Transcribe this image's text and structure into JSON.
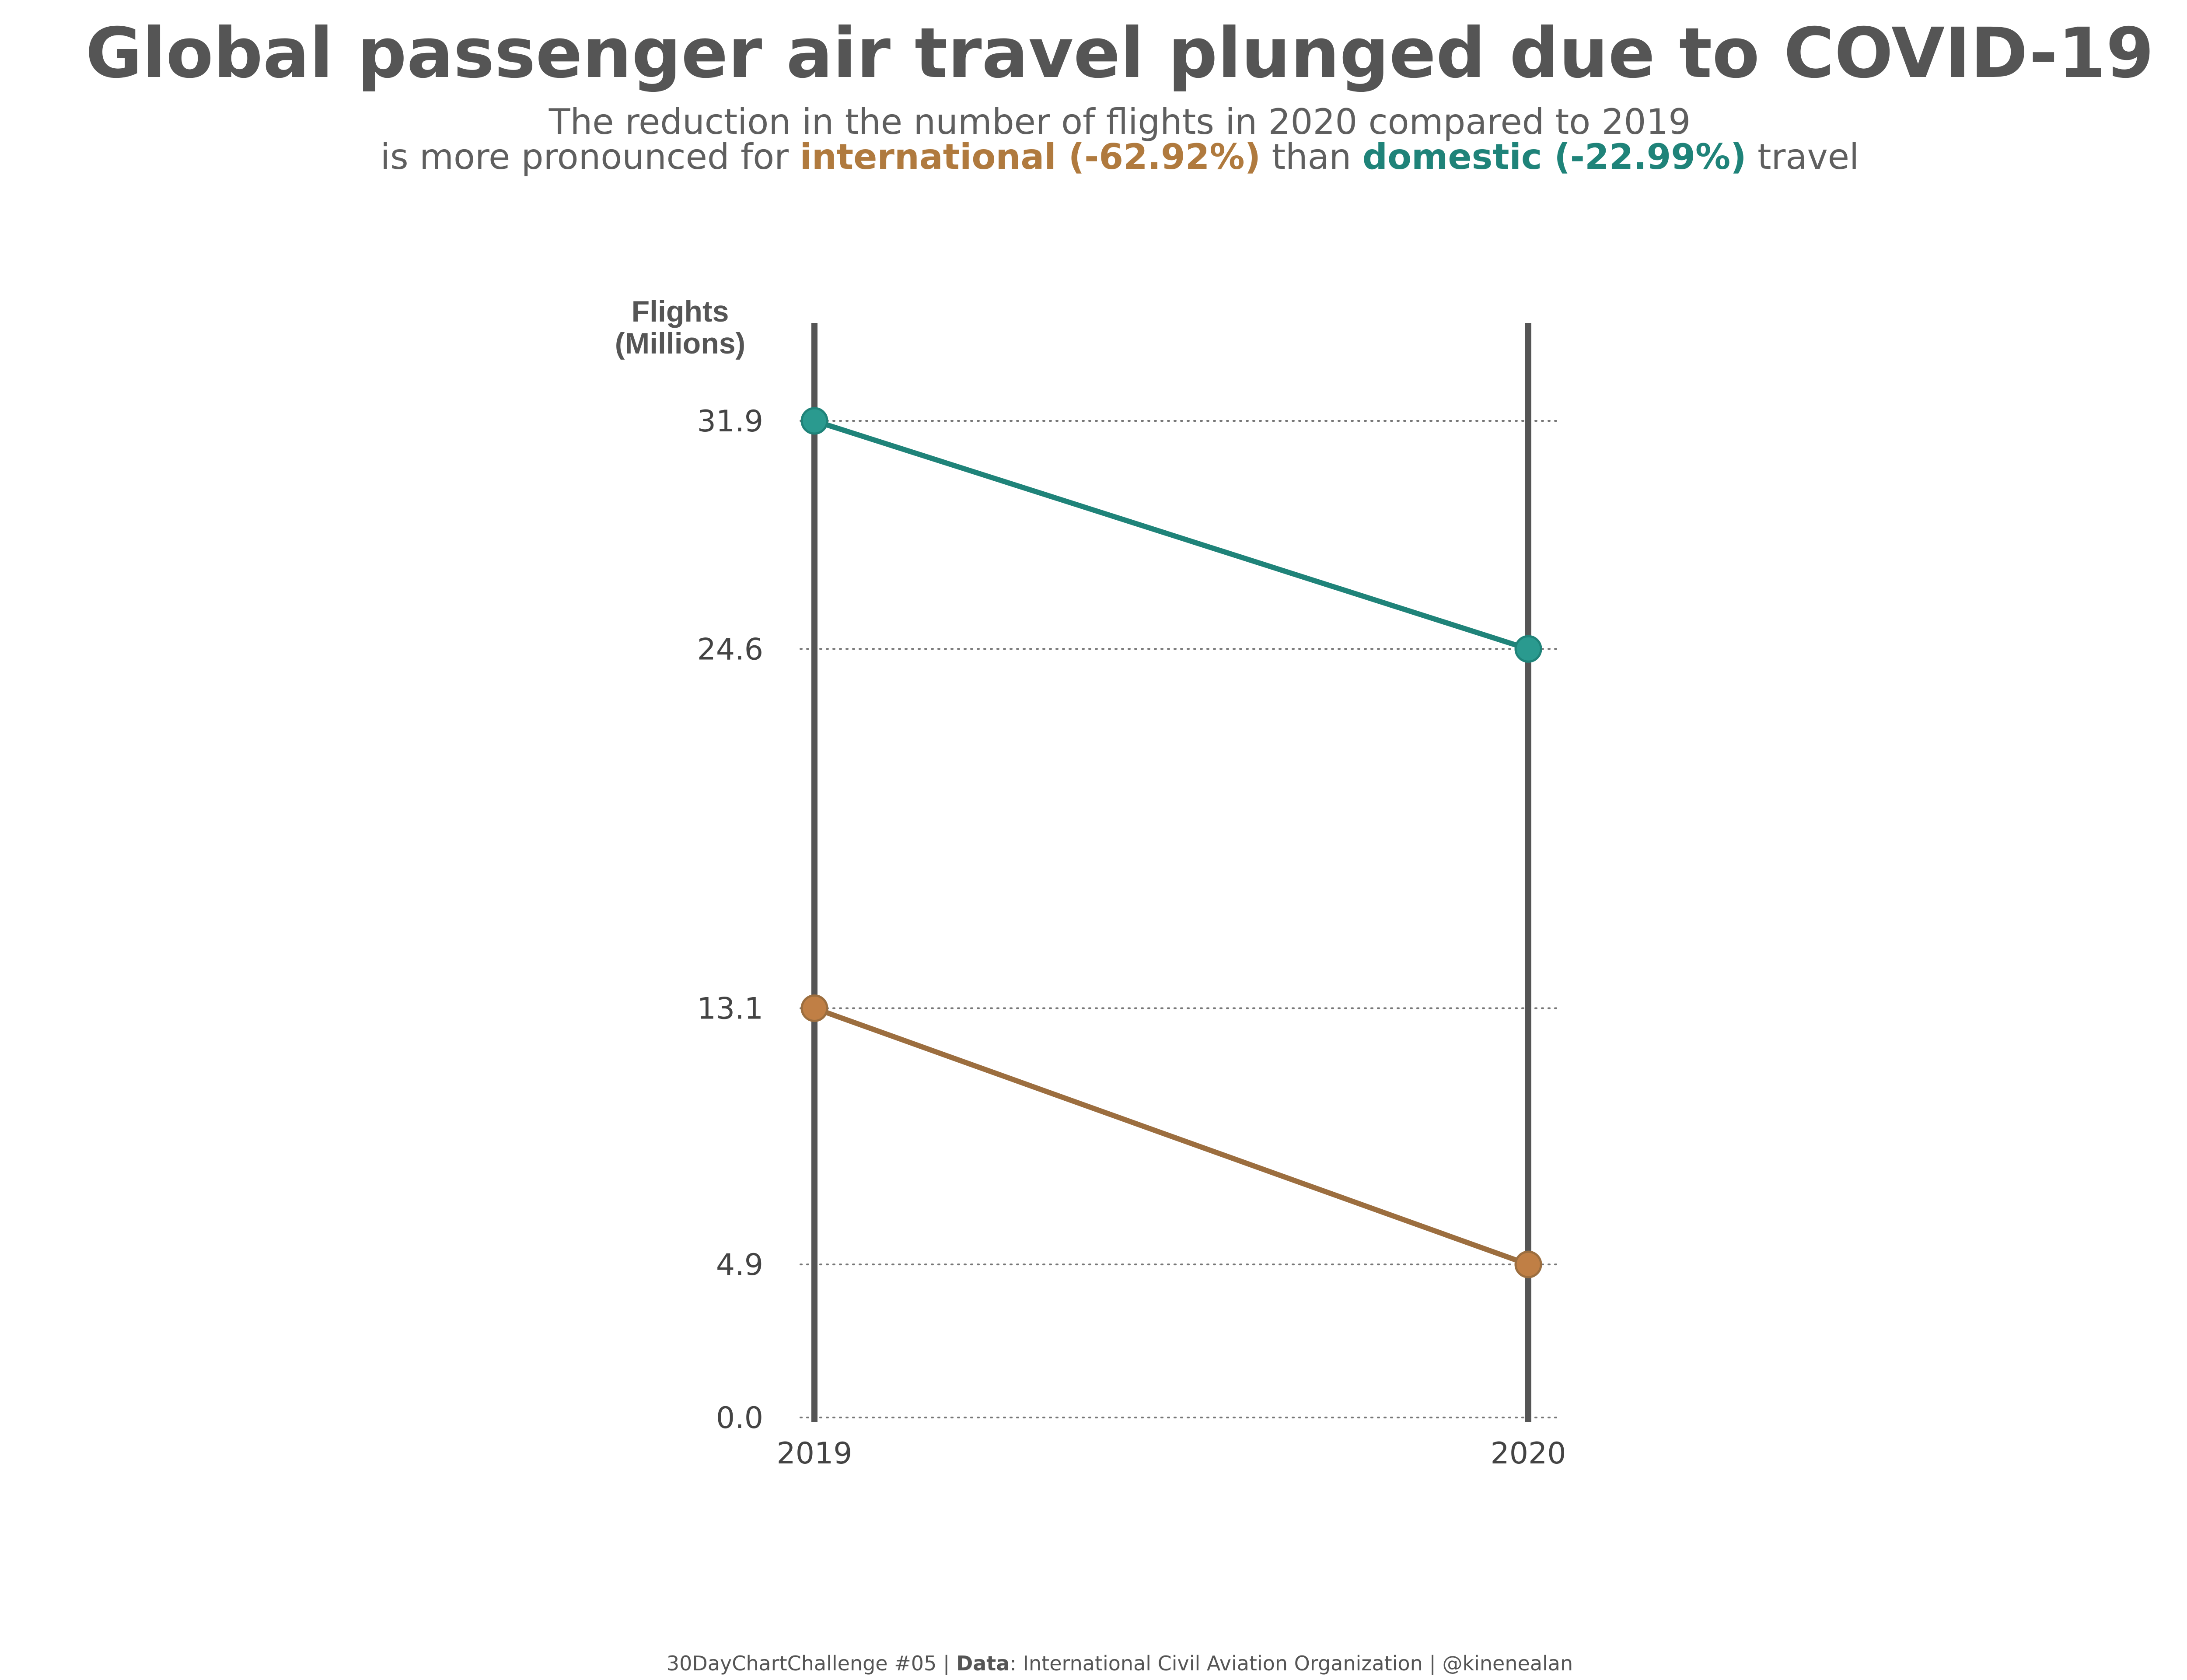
{
  "chart_data": {
    "type": "line",
    "title": "Global passenger air travel plunged due to COVID-19",
    "subtitle_line1": "The reduction in the number of flights in 2020 compared to 2019",
    "subtitle_line2": {
      "part1": "is more pronounced for ",
      "intl": "international (-62.92%)",
      "part2": " than ",
      "dom": "domestic (-22.99%)",
      "part3": " travel"
    },
    "ylabel_line1": "Flights",
    "ylabel_line2": "(Millions)",
    "x": [
      "2019",
      "2020"
    ],
    "ylim": [
      0,
      31.9
    ],
    "yticks": [
      "31.9",
      "24.6",
      "13.1",
      "4.9",
      "0.0"
    ],
    "ytick_values": [
      31.9,
      24.6,
      13.1,
      4.9,
      0.0
    ],
    "grid": "horizontal dotted",
    "series": [
      {
        "key": "domestic",
        "values": [
          31.9,
          24.6
        ],
        "color": "#1f8379",
        "point_color": "#2a9a8f"
      },
      {
        "key": "international",
        "values": [
          13.1,
          4.9
        ],
        "color": "#9c6e3f",
        "point_color": "#c07f45"
      }
    ]
  },
  "caption": {
    "part1": "30DayChartChallenge #05 | ",
    "data_label": "Data",
    "part2": ": International Civil Aviation Organization | @kinenealan"
  }
}
